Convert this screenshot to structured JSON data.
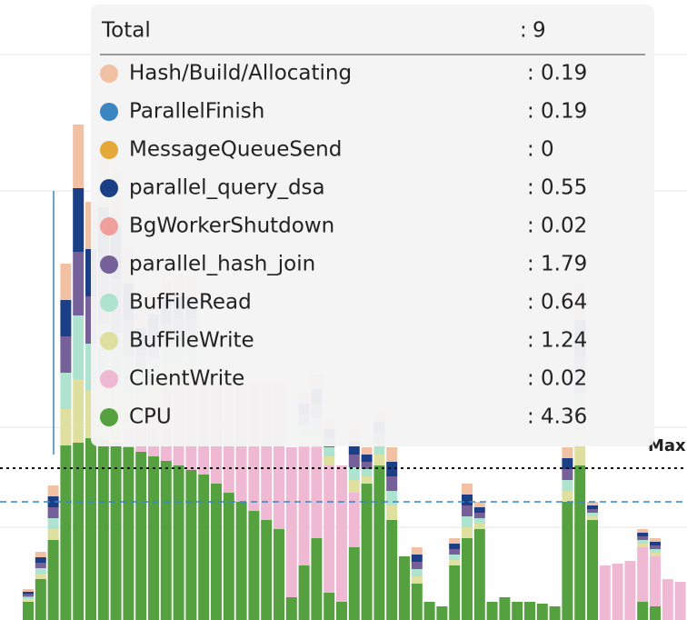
{
  "chart": {
    "max_label": "Max"
  },
  "tooltip": {
    "total": {
      "label": "Total",
      "separator": ":",
      "value": 9
    },
    "items": [
      {
        "label": "Hash/Build/Allocating",
        "color": "#f2c0a3",
        "separator": ":",
        "value": 0.19
      },
      {
        "label": "ParallelFinish",
        "color": "#3a85c2",
        "separator": ":",
        "value": 0.19
      },
      {
        "label": "MessageQueueSend",
        "color": "#e5a93a",
        "separator": ":",
        "value": 0
      },
      {
        "label": "parallel_query_dsa",
        "color": "#1b3f86",
        "separator": ":",
        "value": 0.55
      },
      {
        "label": "BgWorkerShutdown",
        "color": "#f0a09c",
        "separator": ":",
        "value": 0.02
      },
      {
        "label": "parallel_hash_join",
        "color": "#76609a",
        "separator": ":",
        "value": 1.79
      },
      {
        "label": "BufFileRead",
        "color": "#aee3cf",
        "separator": ":",
        "value": 0.64
      },
      {
        "label": "BufFileWrite",
        "color": "#dfe0a0",
        "separator": ":",
        "value": 1.24
      },
      {
        "label": "ClientWrite",
        "color": "#f0b9d3",
        "separator": ":",
        "value": 0.02
      },
      {
        "label": "CPU",
        "color": "#55a140",
        "separator": ":",
        "value": 4.36
      }
    ]
  }
}
